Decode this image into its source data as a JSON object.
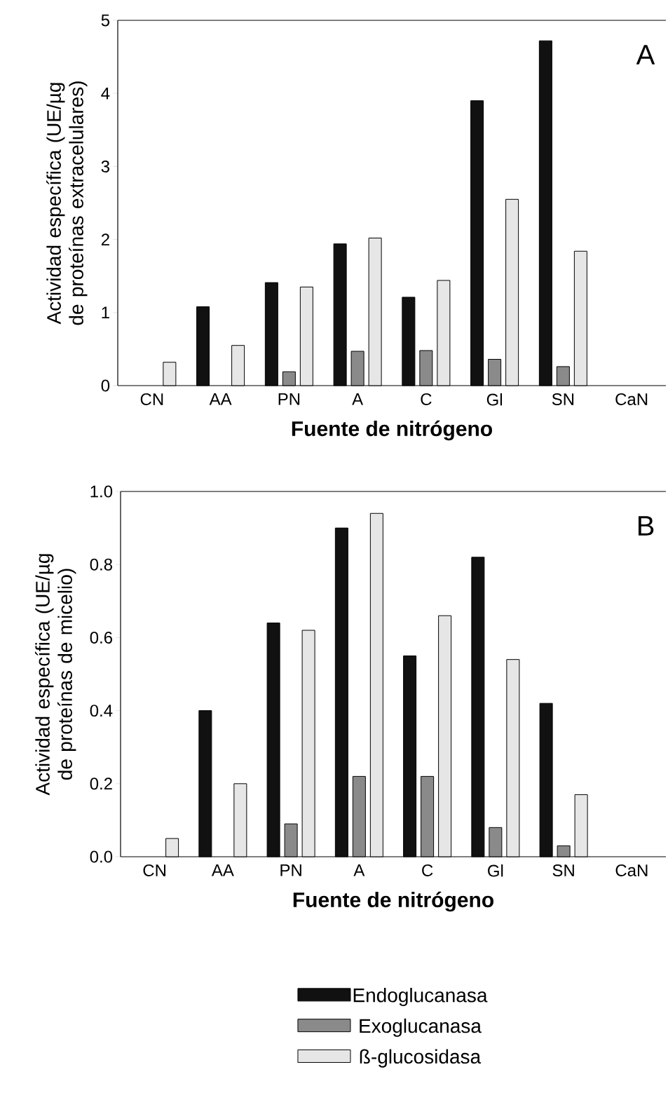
{
  "chart_data": [
    {
      "type": "bar",
      "categories": [
        "CN",
        "AA",
        "PN",
        "A",
        "C",
        "Gl",
        "SN",
        "CaN"
      ],
      "series": [
        {
          "color": "#111111",
          "values": [
            null,
            1.08,
            1.41,
            1.94,
            1.21,
            3.9,
            4.72,
            null
          ]
        },
        {
          "color": "#8a8a8a",
          "values": [
            null,
            null,
            0.19,
            0.47,
            0.48,
            0.36,
            0.26,
            null
          ]
        },
        {
          "color": "#e6e6e6",
          "values": [
            0.32,
            0.55,
            1.35,
            2.02,
            1.44,
            2.55,
            1.84,
            null
          ]
        }
      ],
      "ylim": [
        0,
        5
      ],
      "yticks": [
        0,
        1,
        2,
        3,
        4,
        5
      ],
      "xlabel": "Fuente de nitrógeno",
      "ylabel": "Actividad específica (UE/µg de proteínas extracelulares)",
      "annotations": [
        "A"
      ],
      "legend": false
    },
    {
      "type": "bar",
      "categories": [
        "CN",
        "AA",
        "PN",
        "A",
        "C",
        "Gl",
        "SN",
        "CaN"
      ],
      "series": [
        {
          "name": "Endoglucanasa",
          "color": "#111111",
          "values": [
            null,
            0.4,
            0.64,
            0.9,
            0.55,
            0.82,
            0.42,
            null
          ]
        },
        {
          "name": "Exoglucanasa",
          "color": "#8a8a8a",
          "values": [
            null,
            null,
            0.09,
            0.22,
            0.22,
            0.08,
            0.03,
            null
          ]
        },
        {
          "name": "ß-glucosidasa",
          "color": "#e6e6e6",
          "values": [
            0.05,
            0.2,
            0.62,
            0.94,
            0.66,
            0.54,
            0.17,
            null
          ]
        }
      ],
      "ylim": [
        0,
        1.0
      ],
      "yticks": [
        {
          "value": 0,
          "label": "0.0"
        },
        {
          "value": 0.2,
          "label": "0.2"
        },
        {
          "value": 0.4,
          "label": "0.4"
        },
        {
          "value": 0.6,
          "label": "0.6"
        },
        {
          "value": 0.8,
          "label": "0.8"
        },
        {
          "value": 1.0,
          "label": "1.0"
        }
      ],
      "xlabel": "Fuente de nitrógeno",
      "ylabel": "Actividad específica (UE/µg de proteínas de micelio)",
      "annotations": [
        "B"
      ],
      "legend": "bottom"
    }
  ]
}
